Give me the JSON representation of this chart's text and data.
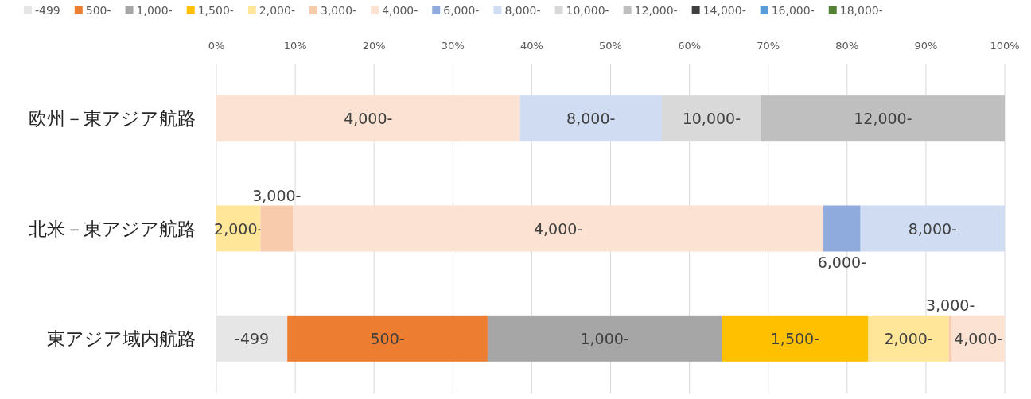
{
  "chart_data": {
    "type": "bar",
    "orientation": "horizontal",
    "stacked": true,
    "categories": [
      "欧州－東アジア航路",
      "北米－東アジア航路",
      "東アジア域内航路"
    ],
    "series": [
      {
        "name": "-499",
        "color": "#e7e6e6",
        "values": [
          null,
          null,
          9.0
        ]
      },
      {
        "name": "500-",
        "color": "#ed7d31",
        "values": [
          null,
          null,
          25.4
        ]
      },
      {
        "name": "1,000-",
        "color": "#a6a6a6",
        "values": [
          null,
          null,
          29.7
        ]
      },
      {
        "name": "1,500-",
        "color": "#ffc000",
        "values": [
          null,
          null,
          18.6
        ]
      },
      {
        "name": "2,000-",
        "color": "#ffe699",
        "values": [
          null,
          5.6,
          10.2
        ]
      },
      {
        "name": "3,000-",
        "color": "#f8cbad",
        "values": [
          null,
          4.1,
          0.4
        ]
      },
      {
        "name": "4,000-",
        "color": "#fbe2d2",
        "values": [
          38.5,
          67.3,
          6.7
        ]
      },
      {
        "name": "6,000-",
        "color": "#8faadc",
        "values": [
          null,
          4.7,
          null
        ]
      },
      {
        "name": "8,000-",
        "color": "#d0dcf1",
        "values": [
          18.0,
          18.3,
          null
        ]
      },
      {
        "name": "10,000-",
        "color": "#d9d9d9",
        "values": [
          12.6,
          null,
          null
        ]
      },
      {
        "name": "12,000-",
        "color": "#bfbfbf",
        "values": [
          30.9,
          null,
          null
        ]
      },
      {
        "name": "14,000-",
        "color": "#404040",
        "values": [
          null,
          null,
          null
        ]
      },
      {
        "name": "16,000-",
        "color": "#5b9bd5",
        "values": [
          null,
          null,
          null
        ]
      },
      {
        "name": "18,000-",
        "color": "#548235",
        "values": [
          null,
          null,
          null
        ]
      }
    ],
    "xlim": [
      0,
      100
    ],
    "xticks": [
      {
        "value": 0,
        "label": "0%"
      },
      {
        "value": 10,
        "label": "10%"
      },
      {
        "value": 20,
        "label": "20%"
      },
      {
        "value": 30,
        "label": "30%"
      },
      {
        "value": 40,
        "label": "40%"
      },
      {
        "value": 50,
        "label": "50%"
      },
      {
        "value": 60,
        "label": "60%"
      },
      {
        "value": 70,
        "label": "70%"
      },
      {
        "value": 80,
        "label": "80%"
      },
      {
        "value": 90,
        "label": "90%"
      },
      {
        "value": 100,
        "label": "100%"
      }
    ],
    "grid": "x",
    "legend": "top"
  }
}
